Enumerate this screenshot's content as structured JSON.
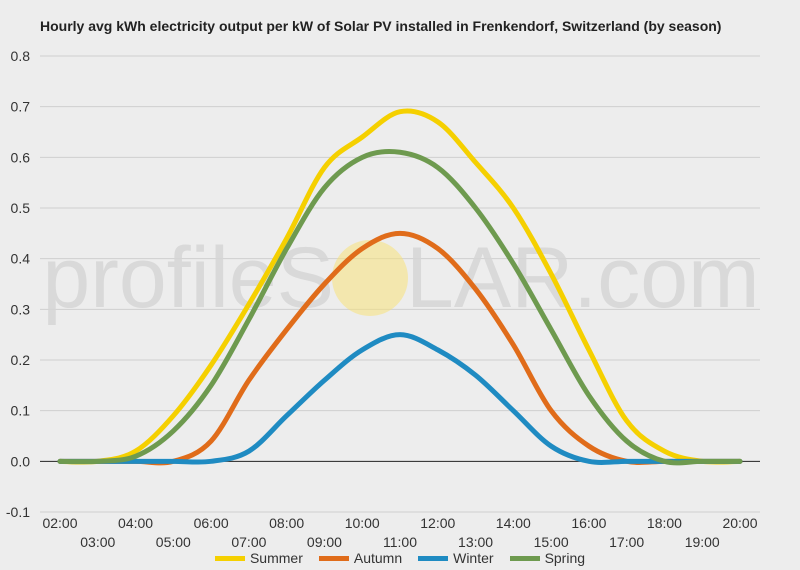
{
  "title": "Hourly avg kWh electricity output per kW of Solar PV installed in Frenkendorf, Switzerland (by season)",
  "watermark": {
    "text_left": "profileS",
    "text_right": "LAR.com",
    "sun_color": "#f7e27a"
  },
  "chart_data": {
    "type": "line",
    "title": "Hourly avg kWh electricity output per kW of Solar PV installed in Frenkendorf, Switzerland (by season)",
    "xlabel": "",
    "ylabel": "",
    "ylim": [
      -0.1,
      0.8
    ],
    "yticks": [
      "-0.1",
      "0.0",
      "0.1",
      "0.2",
      "0.3",
      "0.4",
      "0.5",
      "0.6",
      "0.7",
      "0.8"
    ],
    "x": [
      "02:00",
      "03:00",
      "04:00",
      "05:00",
      "06:00",
      "07:00",
      "08:00",
      "09:00",
      "10:00",
      "11:00",
      "12:00",
      "13:00",
      "14:00",
      "15:00",
      "16:00",
      "17:00",
      "18:00",
      "19:00",
      "20:00"
    ],
    "grid": true,
    "legend_position": "bottom",
    "series": [
      {
        "name": "Summer",
        "color": "#f5d000",
        "values": [
          0.0,
          0.0,
          0.02,
          0.09,
          0.19,
          0.31,
          0.44,
          0.58,
          0.64,
          0.69,
          0.67,
          0.59,
          0.5,
          0.37,
          0.22,
          0.08,
          0.02,
          0.0,
          0.0
        ]
      },
      {
        "name": "Autumn",
        "color": "#e06c1a",
        "values": [
          0.0,
          0.0,
          0.0,
          0.0,
          0.04,
          0.16,
          0.26,
          0.35,
          0.42,
          0.45,
          0.42,
          0.34,
          0.23,
          0.1,
          0.03,
          0.0,
          0.0,
          0.0,
          0.0
        ]
      },
      {
        "name": "Winter",
        "color": "#1f8bc2",
        "values": [
          0.0,
          0.0,
          0.0,
          0.0,
          0.0,
          0.02,
          0.09,
          0.16,
          0.22,
          0.25,
          0.22,
          0.17,
          0.1,
          0.03,
          0.0,
          0.0,
          0.0,
          0.0,
          0.0
        ]
      },
      {
        "name": "Spring",
        "color": "#6e9a4f",
        "values": [
          0.0,
          0.0,
          0.01,
          0.06,
          0.15,
          0.28,
          0.42,
          0.54,
          0.6,
          0.61,
          0.58,
          0.5,
          0.39,
          0.26,
          0.13,
          0.04,
          0.0,
          0.0,
          0.0
        ]
      }
    ]
  }
}
